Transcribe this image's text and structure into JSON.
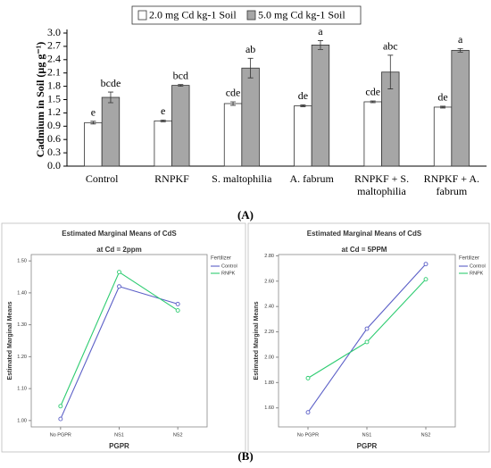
{
  "chart_data": [
    {
      "type": "bar",
      "panel_label": "(A)",
      "y_label": "Cadmium in Soil (µg g⁻¹)",
      "categories": [
        "Control",
        "RNPKF",
        "S. maltophilia",
        "A. fabrum",
        "RNPKF + S. maltophilia",
        "RNPKF + A. fabrum"
      ],
      "series": [
        {
          "name": "2.0 mg Cd kg-1 Soil",
          "color": "#ffffff",
          "values": [
            0.98,
            1.02,
            1.41,
            1.36,
            1.45,
            1.33
          ],
          "errors": [
            0.03,
            0.02,
            0.04,
            0.02,
            0.02,
            0.02
          ],
          "letters": [
            "e",
            "e",
            "cde",
            "de",
            "cde",
            "de"
          ]
        },
        {
          "name": "5.0 mg Cd kg-1 Soil",
          "color": "#a6a6a6",
          "values": [
            1.55,
            1.82,
            2.21,
            2.73,
            2.12,
            2.61
          ],
          "errors": [
            0.12,
            0.02,
            0.22,
            0.1,
            0.38,
            0.04
          ],
          "letters": [
            "bcde",
            "bcd",
            "ab",
            "a",
            "abc",
            "a"
          ]
        }
      ],
      "ylim": [
        0,
        3.0
      ],
      "yticks": [
        {
          "value": 0,
          "label": "0.0"
        },
        0.3,
        0.6,
        0.9,
        1.2,
        1.5,
        1.8,
        2.1,
        2.4,
        2.7,
        {
          "value": 3.0,
          "label": "3.0"
        }
      ]
    },
    {
      "type": "line",
      "panel_label": "(B)",
      "title": "Estimated Marginal Means of CdS",
      "subtitle": "at Cd = 2ppm",
      "x_label": "PGPR",
      "y_label": "Estimated Marginal Means",
      "legend_title": "Fertilizer",
      "categories": [
        "No PGPR",
        "NS1",
        "NS2"
      ],
      "series": [
        {
          "name": "Control",
          "color": "#5b5fc7",
          "values": [
            1.005,
            1.42,
            1.365
          ]
        },
        {
          "name": "RNPK",
          "color": "#2ecc71",
          "values": [
            1.045,
            1.465,
            1.345
          ]
        }
      ],
      "ylim": [
        0.98,
        1.52
      ],
      "yticks": [
        {
          "value": 1.0,
          "label": "1.00"
        },
        {
          "value": 1.1,
          "label": "1.10"
        },
        {
          "value": 1.2,
          "label": "1.20"
        },
        {
          "value": 1.3,
          "label": "1.30"
        },
        {
          "value": 1.4,
          "label": "1.40"
        },
        {
          "value": 1.5,
          "label": "1.50"
        }
      ]
    },
    {
      "type": "line",
      "title": "Estimated Marginal Means of CdS",
      "subtitle": "at Cd = 5PPM",
      "x_label": "PGPR",
      "y_label": "Estimated Marginal Means",
      "legend_title": "Fertilizer",
      "categories": [
        "No PGPR",
        "NS1",
        "NS2"
      ],
      "series": [
        {
          "name": "Control",
          "color": "#5b5fc7",
          "values": [
            1.565,
            2.225,
            2.735
          ]
        },
        {
          "name": "RNPK",
          "color": "#2ecc71",
          "values": [
            1.835,
            2.12,
            2.615
          ]
        }
      ],
      "ylim": [
        1.45,
        2.81
      ],
      "yticks": [
        {
          "value": 1.6,
          "label": "1.60"
        },
        {
          "value": 1.8,
          "label": "1.80"
        },
        {
          "value": 2.0,
          "label": "2.00"
        },
        {
          "value": 2.2,
          "label": "2.20"
        },
        {
          "value": 2.4,
          "label": "2.40"
        },
        {
          "value": 2.6,
          "label": "2.60"
        },
        {
          "value": 2.8,
          "label": "2.80"
        }
      ]
    }
  ]
}
